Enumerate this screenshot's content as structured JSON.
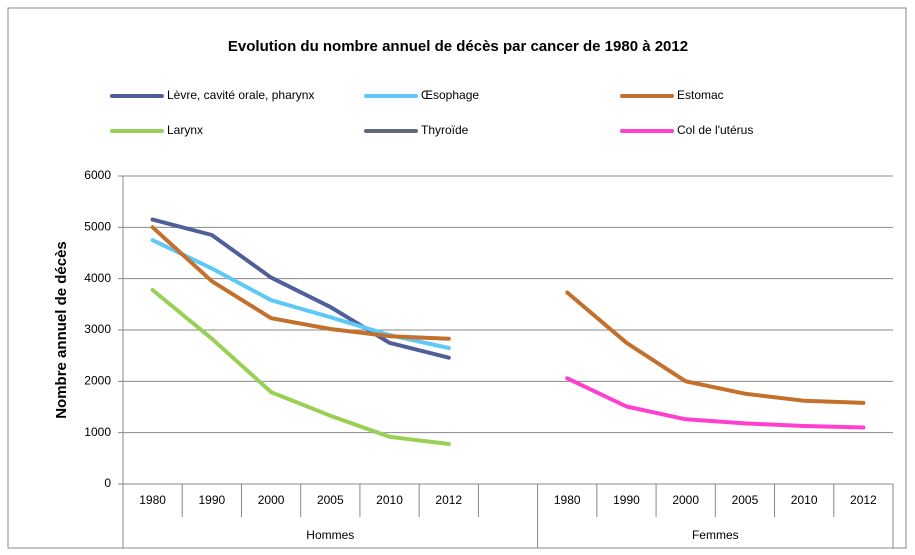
{
  "chart_data": {
    "type": "line",
    "title": "Evolution du nombre annuel de décès par cancer  de 1980 à 2012",
    "y_label": "Nombre annuel de décès",
    "categories": [
      "1980",
      "1990",
      "2000",
      "2005",
      "2010",
      "2012",
      null,
      "1980",
      "1990",
      "2000",
      "2005",
      "2010",
      "2012"
    ],
    "groups": [
      "Hommes",
      "Femmes"
    ],
    "series": [
      {
        "name": "Lèvre, cavité orale, pharynx",
        "color": "#4e5f99",
        "values": [
          5150,
          4850,
          4020,
          3450,
          2750,
          2460,
          null,
          null,
          null,
          null,
          null,
          null,
          null
        ]
      },
      {
        "name": "Œsophage",
        "color": "#5ec8f6",
        "values": [
          4750,
          4200,
          3580,
          3250,
          2900,
          2650,
          null,
          null,
          null,
          null,
          null,
          null,
          null
        ]
      },
      {
        "name": "Estomac",
        "color": "#c2702c",
        "values": [
          5000,
          3950,
          3230,
          3020,
          2880,
          2830,
          null,
          3730,
          2750,
          2000,
          1760,
          1620,
          1580
        ]
      },
      {
        "name": "Larynx",
        "color": "#98d055",
        "values": [
          3780,
          2830,
          1790,
          1330,
          920,
          780,
          null,
          null,
          null,
          null,
          null,
          null,
          null
        ]
      },
      {
        "name": "Thyroïde",
        "color": "#5f6b78",
        "values": [
          null,
          null,
          null,
          null,
          null,
          null,
          null,
          null,
          null,
          null,
          null,
          null,
          null
        ]
      },
      {
        "name": "Col de l'utérus",
        "color": "#ff3fcf",
        "values": [
          null,
          null,
          null,
          null,
          null,
          null,
          null,
          2060,
          1510,
          1260,
          1180,
          1130,
          1100
        ]
      }
    ],
    "ylim": [
      0,
      6000
    ],
    "yticks": [
      0,
      1000,
      2000,
      3000,
      4000,
      5000,
      6000
    ],
    "grid": true
  }
}
